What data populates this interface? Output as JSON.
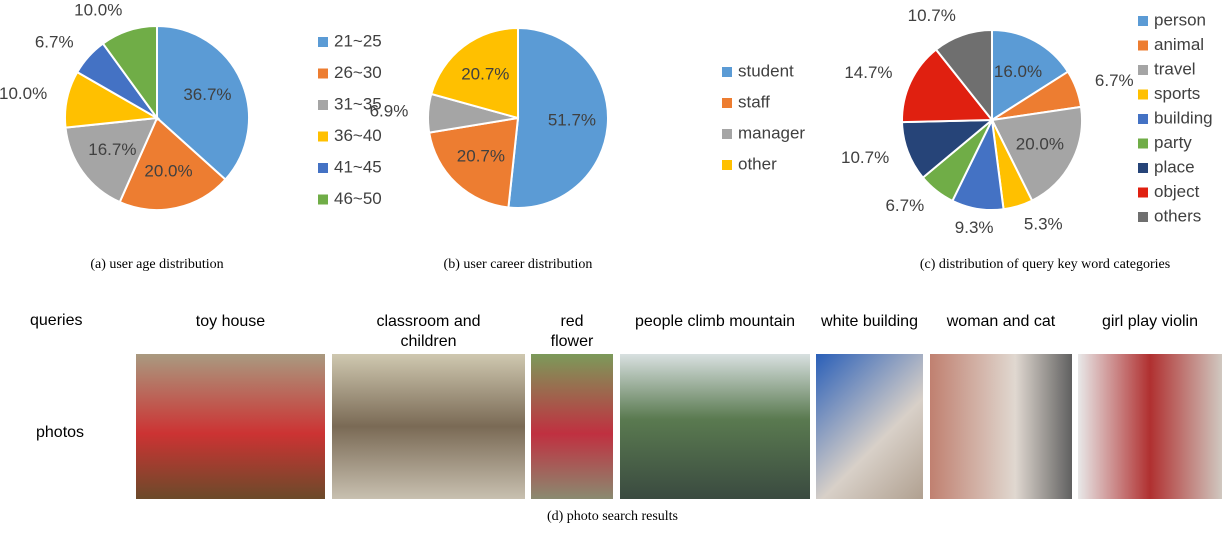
{
  "chart_data": [
    {
      "type": "pie",
      "caption": "(a)  user age distribution",
      "categories": [
        "21~25",
        "26~30",
        "31~35",
        "36~40",
        "41~45",
        "46~50"
      ],
      "values": [
        36.7,
        20.0,
        16.7,
        10.0,
        6.7,
        10.0
      ],
      "value_labels": [
        "36.7%",
        "20.0%",
        "16.7%",
        "10.0%",
        "6.7%",
        "10.0%"
      ],
      "colors": [
        "#5b9bd5",
        "#ed7d31",
        "#a5a5a5",
        "#ffc000",
        "#4472c4",
        "#70ad47"
      ]
    },
    {
      "type": "pie",
      "caption": "(b)  user career distribution",
      "categories": [
        "student",
        "staff",
        "manager",
        "other"
      ],
      "values": [
        51.7,
        20.7,
        6.9,
        20.7
      ],
      "value_labels": [
        "51.7%",
        "20.7%",
        "6.9%",
        "20.7%"
      ],
      "colors": [
        "#5b9bd5",
        "#ed7d31",
        "#a5a5a5",
        "#ffc000"
      ]
    },
    {
      "type": "pie",
      "caption": "(c)  distribution of query key word categories",
      "categories": [
        "person",
        "animal",
        "travel",
        "sports",
        "building",
        "party",
        "place",
        "object",
        "others"
      ],
      "values": [
        16.0,
        6.7,
        20.0,
        5.3,
        9.3,
        6.7,
        10.7,
        14.7,
        10.7
      ],
      "value_labels": [
        "16.0%",
        "6.7%",
        "20.0%",
        "5.3%",
        "9.3%",
        "6.7%",
        "10.7%",
        "14.7%",
        "10.7%"
      ],
      "colors": [
        "#5b9bd5",
        "#ed7d31",
        "#a5a5a5",
        "#ffc000",
        "#4472c4",
        "#70ad47",
        "#264478",
        "#e02010",
        "#6f6f6f"
      ]
    }
  ],
  "photos": {
    "row_labels": [
      "queries",
      "photos"
    ],
    "queries": [
      "toy house",
      "classroom and children",
      "red flower",
      "people climb mountain",
      "white building",
      "woman and cat",
      "girl play violin"
    ],
    "caption": "(d)  photo search results"
  }
}
